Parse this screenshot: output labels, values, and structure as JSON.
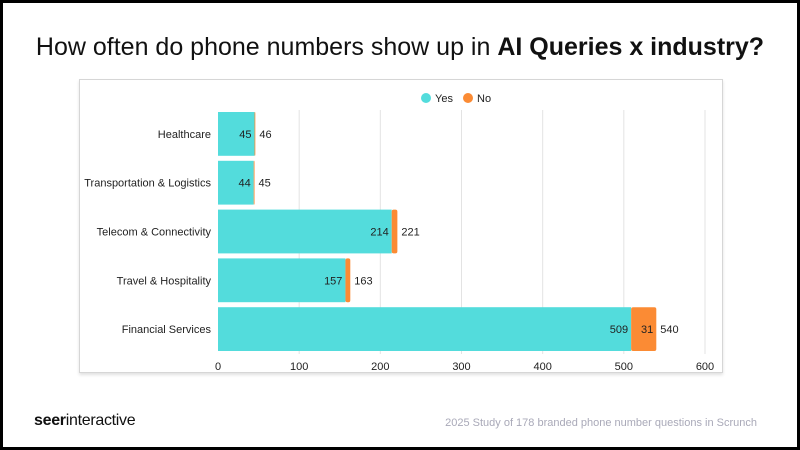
{
  "title": {
    "prefix": "How often do phone numbers show up in ",
    "bold": "AI Queries x industry?"
  },
  "footer": {
    "logo_bold": "seer",
    "logo_rest": "interactive",
    "source": "2025 Study of 178 branded phone number questions in Scrunch"
  },
  "colors": {
    "yes": "#53dcdc",
    "no": "#fb8b34",
    "grid": "#e3e3e3"
  },
  "chart_data": {
    "type": "bar",
    "orientation": "horizontal",
    "stacked": true,
    "categories": [
      "Healthcare",
      "Transportation & Logistics",
      "Telecom & Connectivity",
      "Travel & Hospitality",
      "Financial Services"
    ],
    "series": [
      {
        "name": "Yes",
        "values": [
          45,
          44,
          214,
          157,
          509
        ]
      },
      {
        "name": "No",
        "values": [
          1,
          1,
          7,
          6,
          31
        ]
      }
    ],
    "totals": [
      46,
      45,
      221,
      163,
      540
    ],
    "shown_no_labels": [
      null,
      null,
      null,
      null,
      31
    ],
    "xlim": [
      0,
      600
    ],
    "xticks": [
      0,
      100,
      200,
      300,
      400,
      500,
      600
    ],
    "grid": true,
    "legend": "top"
  }
}
